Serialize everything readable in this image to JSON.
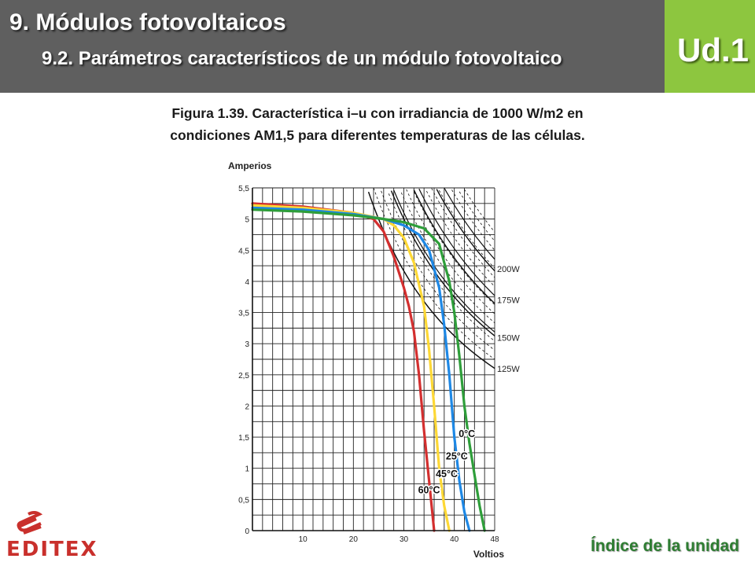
{
  "header": {
    "title": "9. Módulos fotovoltaicos",
    "subtitle": "9.2. Parámetros característicos de un módulo fotovoltaico",
    "unit": "Ud.1",
    "bg_color": "#5f5f5f",
    "accent_color": "#8dc63f"
  },
  "caption": {
    "line1": "Figura 1.39. Característica i–u con irradiancia de 1000 W/m2 en",
    "line2": "condiciones AM1,5 para diferentes temperaturas de las células."
  },
  "footer": {
    "logo_text": "EDITEX",
    "logo_icon": "editex-logo-icon",
    "index_link": "Índice de la unidad"
  },
  "chart_data": {
    "type": "line",
    "ylabel": "Amperios",
    "xlabel": "Voltios",
    "xlim": [
      0,
      48
    ],
    "ylim": [
      0,
      5.5
    ],
    "x_ticks": [
      "10",
      "20",
      "30",
      "40",
      "48"
    ],
    "x_tick_values": [
      10,
      20,
      30,
      40,
      48
    ],
    "y_ticks": [
      "0",
      "0,5",
      "1",
      "1,5",
      "2",
      "2,5",
      "3",
      "3,5",
      "4",
      "4,5",
      "5",
      "5,5"
    ],
    "y_tick_values": [
      0,
      0.5,
      1,
      1.5,
      2,
      2.5,
      3,
      3.5,
      4,
      4.5,
      5,
      5.5
    ],
    "grid": true,
    "power_labels": [
      {
        "label": "200W",
        "y": 4.2
      },
      {
        "label": "175W",
        "y": 3.7
      },
      {
        "label": "150W",
        "y": 3.1
      },
      {
        "label": "125W",
        "y": 2.6
      }
    ],
    "series": [
      {
        "name": "60°C",
        "color": "#d32f2f",
        "label_pos": [
          35,
          0.6
        ],
        "x": [
          0,
          10,
          20,
          24,
          26,
          28,
          30,
          31,
          32,
          33,
          34,
          35,
          36
        ],
        "y": [
          5.25,
          5.2,
          5.1,
          5.0,
          4.8,
          4.4,
          3.9,
          3.6,
          3.2,
          2.5,
          1.6,
          0.8,
          0
        ]
      },
      {
        "name": "45°C",
        "color": "#fdd835",
        "label_pos": [
          38.5,
          0.86
        ],
        "x": [
          0,
          10,
          20,
          26,
          28,
          30,
          32,
          34,
          35,
          36,
          37,
          38,
          39
        ],
        "y": [
          5.22,
          5.18,
          5.1,
          5.0,
          4.9,
          4.7,
          4.3,
          3.6,
          2.9,
          2.0,
          1.0,
          0.4,
          0
        ]
      },
      {
        "name": "25°C",
        "color": "#1e88e5",
        "label_pos": [
          40.5,
          1.14
        ],
        "x": [
          0,
          10,
          20,
          26,
          30,
          33,
          35,
          37,
          38,
          39,
          40,
          41,
          42,
          43
        ],
        "y": [
          5.18,
          5.15,
          5.08,
          5.0,
          4.9,
          4.75,
          4.5,
          3.9,
          3.3,
          2.5,
          1.5,
          0.8,
          0.3,
          0
        ]
      },
      {
        "name": "0°C",
        "color": "#2e9e3a",
        "label_pos": [
          42.5,
          1.5
        ],
        "x": [
          0,
          10,
          20,
          26,
          30,
          34,
          37,
          39,
          40,
          41,
          42,
          43,
          44,
          45,
          46
        ],
        "y": [
          5.15,
          5.12,
          5.06,
          5.0,
          4.95,
          4.85,
          4.6,
          4.0,
          3.5,
          2.8,
          2.0,
          1.4,
          0.9,
          0.4,
          0
        ]
      }
    ]
  }
}
